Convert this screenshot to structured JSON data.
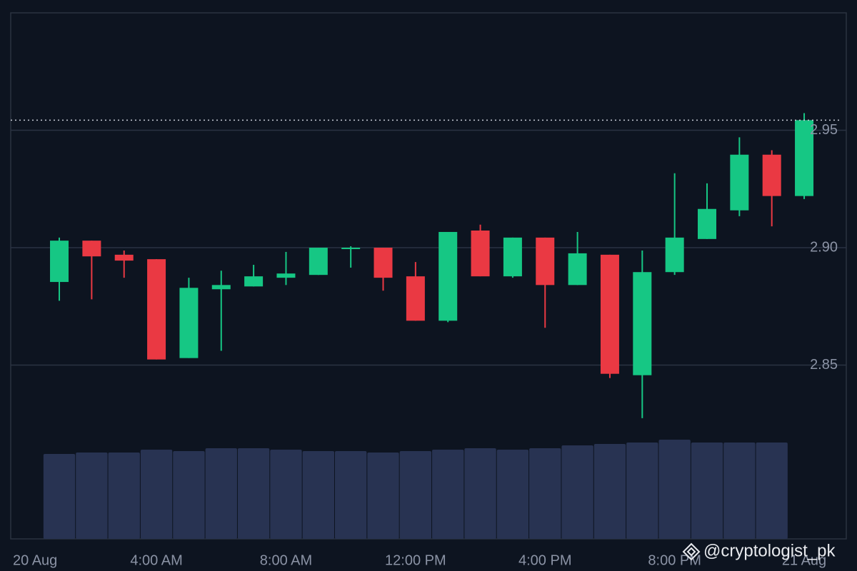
{
  "chart_data": {
    "type": "candlestick",
    "x": [
      1,
      2,
      3,
      4,
      5,
      6,
      7,
      8,
      9,
      10,
      11,
      12,
      13,
      14,
      15,
      16,
      17,
      18,
      19,
      20,
      21,
      22,
      23,
      24
    ],
    "open": [
      2.8854,
      2.903,
      2.897,
      2.8951,
      2.853,
      2.8823,
      2.8835,
      2.8872,
      2.8884,
      2.8994,
      2.9,
      2.8878,
      2.8689,
      2.9073,
      2.8878,
      2.9043,
      2.8841,
      2.897,
      2.8457,
      2.8896,
      2.9037,
      2.9159,
      2.9396,
      2.922
    ],
    "high": [
      2.9043,
      2.903,
      2.8988,
      2.8951,
      2.8872,
      2.8902,
      2.8927,
      2.8982,
      2.9,
      2.9006,
      2.9,
      2.8939,
      2.9067,
      2.9098,
      2.9043,
      2.9043,
      2.9067,
      2.897,
      2.8988,
      2.9317,
      2.9274,
      2.947,
      2.9415,
      2.9573
    ],
    "low": [
      2.8774,
      2.878,
      2.8872,
      2.8524,
      2.853,
      2.8561,
      2.8835,
      2.8841,
      2.8884,
      2.8915,
      2.8817,
      2.8689,
      2.8683,
      2.8878,
      2.8872,
      2.8659,
      2.8841,
      2.8445,
      2.8274,
      2.8884,
      2.9037,
      2.9134,
      2.9091,
      2.9207
    ],
    "close": [
      2.903,
      2.8963,
      2.8945,
      2.8524,
      2.8829,
      2.8841,
      2.8878,
      2.889,
      2.9,
      2.9,
      2.8872,
      2.8689,
      2.9067,
      2.8878,
      2.9043,
      2.8841,
      2.8976,
      2.8463,
      2.8896,
      2.9043,
      2.9165,
      2.9396,
      2.922,
      2.9543
    ],
    "volume": [
      119,
      121,
      121,
      125,
      123,
      127,
      127,
      125,
      123,
      123,
      121,
      123,
      125,
      127,
      125,
      127,
      131,
      133,
      135,
      139,
      135,
      135,
      135,
      null
    ],
    "up_color": "#16c784",
    "down_color": "#ea3943",
    "volume_color": "#283352",
    "xlim": [
      -0.5,
      25.3
    ],
    "xticks": [
      {
        "value": 0,
        "label": "20 Aug"
      },
      {
        "value": 4,
        "label": "4:00 AM"
      },
      {
        "value": 8,
        "label": "8:00 AM"
      },
      {
        "value": 12,
        "label": "12:00 PM"
      },
      {
        "value": 16,
        "label": "4:00 PM"
      },
      {
        "value": 20,
        "label": "8:00 PM"
      },
      {
        "value": 24,
        "label": "21 Aug"
      }
    ],
    "ylim": [
      2.776,
      3.0
    ],
    "yticks": [
      2.85,
      {
        "value": 2.9,
        "label": "2.90"
      },
      2.95
    ],
    "grid": true,
    "last_price_line": true
  },
  "watermark": "@cryptologist_pk"
}
